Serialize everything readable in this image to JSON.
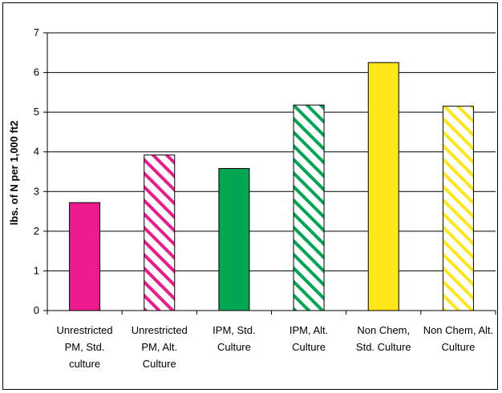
{
  "chart_data": {
    "type": "bar",
    "title": "",
    "xlabel": "",
    "ylabel": "lbs. of N per 1,000 ft2",
    "ylim": [
      0,
      7
    ],
    "yticks": [
      0,
      1,
      2,
      3,
      4,
      5,
      6,
      7
    ],
    "grid": true,
    "legend": "none",
    "categories": [
      [
        "Unrestricted",
        "PM, Std.",
        "culture"
      ],
      [
        "Unrestricted",
        "PM, Alt.",
        "Culture"
      ],
      [
        "IPM,  Std.",
        "Culture"
      ],
      [
        "IPM,  Alt.",
        "Culture"
      ],
      [
        "Non Chem,",
        "Std. Culture"
      ],
      [
        "Non Chem, Alt.",
        "Culture"
      ]
    ],
    "values": [
      2.72,
      3.92,
      3.58,
      5.18,
      6.25,
      5.15
    ],
    "colors": [
      "#ec1a8c",
      "#ec1a8c",
      "#00a651",
      "#00a651",
      "#ffe619",
      "#ffe619"
    ],
    "fill_styles": [
      "solid",
      "hatched",
      "solid",
      "hatched",
      "solid",
      "hatched"
    ]
  }
}
